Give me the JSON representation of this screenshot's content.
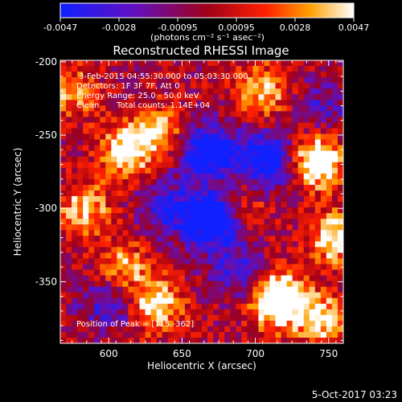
{
  "chart_data": {
    "type": "heatmap",
    "title": "Reconstructed RHESSI Image",
    "xlabel": "Heliocentric X (arcsec)",
    "ylabel": "Heliocentric Y (arcsec)",
    "xlim": [
      567,
      760
    ],
    "ylim": [
      -392,
      -199
    ],
    "x_ticks": [
      600,
      650,
      700,
      750
    ],
    "y_ticks": [
      -200,
      -250,
      -300,
      -350
    ],
    "colorbar": {
      "range": [
        -0.0047,
        0.0047
      ],
      "tick_labels": [
        "-0.0047",
        "-0.0028",
        "-0.00095",
        "0.00095",
        "0.0028",
        "0.0047"
      ],
      "unit_label": "(photons cm⁻² s⁻¹ asec⁻²)"
    },
    "annotations": [
      "3-Feb-2015 04:55:30.000 to 05:03:30.000",
      "Detectors: 1F 3F 7F, Att 0",
      "Energy Range: 25.0 - 50.0 keV",
      "Clean",
      "Total counts: 1.14E+04"
    ],
    "peak_label": "Position of Peak = [715,-362]",
    "peak": [
      715,
      -362
    ],
    "colors": {
      "grid_dark": "#0000ff",
      "grid_bright": "#ffffff"
    }
  },
  "footer": {
    "timestamp": "5-Oct-2017 03:23"
  }
}
